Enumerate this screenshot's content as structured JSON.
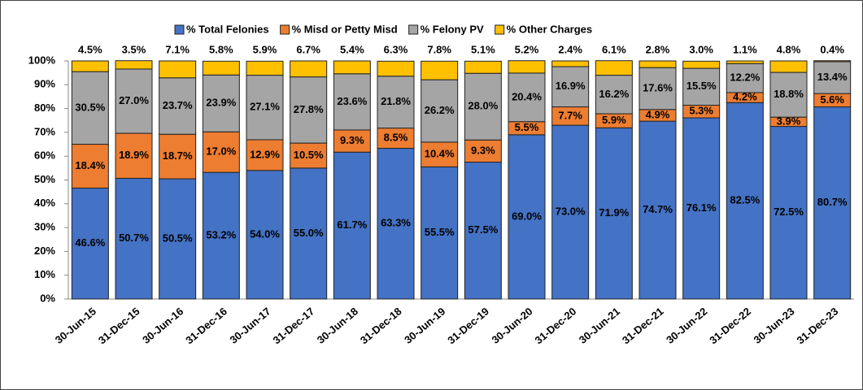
{
  "chart_data": {
    "type": "stacked_bar",
    "categories": [
      "30-Jun-15",
      "31-Dec-15",
      "30-Jun-16",
      "31-Dec-16",
      "30-Jun-17",
      "31-Dec-17",
      "30-Jun-18",
      "31-Dec-18",
      "30-Jun-19",
      "31-Dec-19",
      "30-Jun-20",
      "31-Dec-20",
      "30-Jun-21",
      "31-Dec-21",
      "30-Jun-22",
      "31-Dec-22",
      "30-Jun-23",
      "31-Dec-23"
    ],
    "series": [
      {
        "name": "% Total Felonies",
        "color": "#4472c4",
        "values": [
          46.6,
          50.7,
          50.5,
          53.2,
          54.0,
          55.0,
          61.7,
          63.3,
          55.5,
          57.5,
          69.0,
          73.0,
          71.9,
          74.7,
          76.1,
          82.5,
          72.5,
          80.7
        ],
        "value_labels": [
          "46.6%",
          "50.7%",
          "50.5%",
          "53.2%",
          "54.0%",
          "55.0%",
          "61.7%",
          "63.3%",
          "55.5%",
          "57.5%",
          "69.0%",
          "73.0%",
          "71.9%",
          "74.7%",
          "76.1%",
          "82.5%",
          "72.5%",
          "80.7%"
        ]
      },
      {
        "name": "% Misd or Petty Misd",
        "color": "#ed7d31",
        "values": [
          18.4,
          18.9,
          18.7,
          17.0,
          12.9,
          10.5,
          9.3,
          8.5,
          10.4,
          9.3,
          5.5,
          7.7,
          5.9,
          4.9,
          5.3,
          4.2,
          3.9,
          5.6
        ],
        "value_labels": [
          "18.4%",
          "18.9%",
          "18.7%",
          "17.0%",
          "12.9%",
          "10.5%",
          "9.3%",
          "8.5%",
          "10.4%",
          "9.3%",
          "5.5%",
          "7.7%",
          "5.9%",
          "4.9%",
          "5.3%",
          "4.2%",
          "3.9%",
          "5.6%"
        ]
      },
      {
        "name": "% Felony PV",
        "color": "#a5a5a5",
        "values": [
          30.5,
          27.0,
          23.7,
          23.9,
          27.1,
          27.8,
          23.6,
          21.8,
          26.2,
          28.0,
          20.4,
          16.9,
          16.2,
          17.6,
          15.5,
          12.2,
          18.8,
          13.4
        ],
        "value_labels": [
          "30.5%",
          "27.0%",
          "23.7%",
          "23.9%",
          "27.1%",
          "27.8%",
          "23.6%",
          "21.8%",
          "26.2%",
          "28.0%",
          "20.4%",
          "16.9%",
          "16.2%",
          "17.6%",
          "15.5%",
          "12.2%",
          "18.8%",
          "13.4%"
        ]
      },
      {
        "name": "% Other Charges",
        "color": "#ffc000",
        "values": [
          4.5,
          3.5,
          7.1,
          5.8,
          5.9,
          6.7,
          5.4,
          6.3,
          7.8,
          5.1,
          5.2,
          2.4,
          6.1,
          2.8,
          3.0,
          1.1,
          4.8,
          0.4
        ],
        "value_labels": [
          "4.5%",
          "3.5%",
          "7.1%",
          "5.8%",
          "5.9%",
          "6.7%",
          "5.4%",
          "6.3%",
          "7.8%",
          "5.1%",
          "5.2%",
          "2.4%",
          "6.1%",
          "2.8%",
          "3.0%",
          "1.1%",
          "4.8%",
          "0.4%"
        ]
      }
    ],
    "ylim": [
      0,
      100
    ],
    "yticks": [
      {
        "value": 0,
        "label": "0%"
      },
      {
        "value": 10,
        "label": "10%"
      },
      {
        "value": 20,
        "label": "20%"
      },
      {
        "value": 30,
        "label": "30%"
      },
      {
        "value": 40,
        "label": "40%"
      },
      {
        "value": 50,
        "label": "50%"
      },
      {
        "value": 60,
        "label": "60%"
      },
      {
        "value": 70,
        "label": "70%"
      },
      {
        "value": 80,
        "label": "80%"
      },
      {
        "value": 90,
        "label": "90%"
      },
      {
        "value": 100,
        "label": "100%"
      }
    ],
    "legend": "top"
  }
}
